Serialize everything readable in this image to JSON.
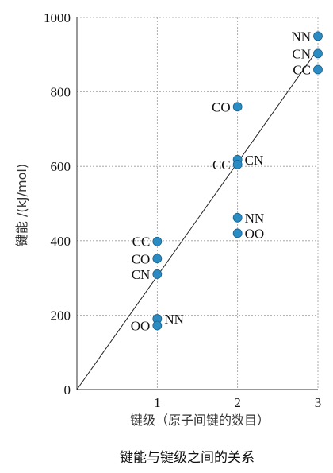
{
  "chart_data": {
    "type": "scatter",
    "title": "键能与键级之间的关系",
    "xlabel": "键级（原子间键的数目）",
    "ylabel": "键能 /(kJ/mol)",
    "xlim": [
      0,
      3
    ],
    "ylim": [
      0,
      1000
    ],
    "xticks": [
      1,
      2,
      3
    ],
    "yticks": [
      0,
      200,
      400,
      600,
      800,
      1000
    ],
    "grid": true,
    "marker_color": "#2b8cc4",
    "points": [
      {
        "label": "CC",
        "x": 1,
        "y": 398,
        "label_side": "left"
      },
      {
        "label": "CO",
        "x": 1,
        "y": 352,
        "label_side": "left"
      },
      {
        "label": "CN",
        "x": 1,
        "y": 310,
        "label_side": "left"
      },
      {
        "label": "NN",
        "x": 1,
        "y": 190,
        "label_side": "right"
      },
      {
        "label": "OO",
        "x": 1,
        "y": 172,
        "label_side": "left"
      },
      {
        "label": "CO",
        "x": 2,
        "y": 760,
        "label_side": "left"
      },
      {
        "label": "CN",
        "x": 2,
        "y": 618,
        "label_side": "right"
      },
      {
        "label": "CC",
        "x": 2,
        "y": 605,
        "label_side": "left"
      },
      {
        "label": "NN",
        "x": 2,
        "y": 462,
        "label_side": "right"
      },
      {
        "label": "OO",
        "x": 2,
        "y": 420,
        "label_side": "right"
      },
      {
        "label": "NN",
        "x": 3,
        "y": 950,
        "label_side": "left"
      },
      {
        "label": "CN",
        "x": 3,
        "y": 903,
        "label_side": "left"
      },
      {
        "label": "CC",
        "x": 3,
        "y": 860,
        "label_side": "left"
      }
    ],
    "trend_line": {
      "x": [
        0,
        3
      ],
      "y": [
        0,
        915
      ]
    }
  }
}
